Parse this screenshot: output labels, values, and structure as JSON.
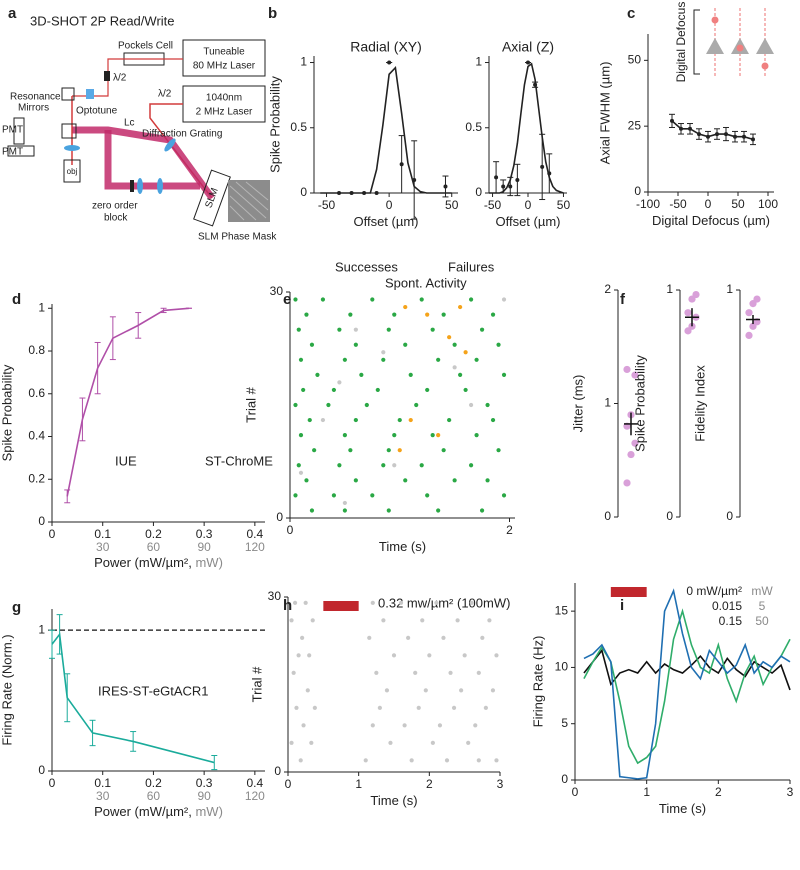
{
  "diagram": {
    "label": "a",
    "labels": [
      "3D-SHOT 2P Read/Write",
      "Pockels Cell",
      "Tuneable",
      "80 MHz Laser",
      "Resonance",
      "Mirrors",
      "λ/2",
      "Optotune",
      "1040nm",
      "2 MHz Laser",
      "λ/2",
      "Lc",
      "Diffraction Grating",
      "PMT",
      "PMT",
      "obj",
      "zero order",
      "block",
      "SLM",
      "SLM Phase Mask"
    ]
  },
  "chart_data": [
    {
      "type": "line",
      "label": "b",
      "title": "Radial (XY)",
      "xlabel": "Offset (µm)",
      "ylabel": "Spike Probability",
      "xlim": [
        -60,
        55
      ],
      "ylim": [
        0,
        1.05
      ],
      "xticks": [
        -50,
        0,
        50
      ],
      "yticks": [
        0,
        0.5,
        1
      ],
      "series": [
        {
          "style": "points",
          "color": "#222222",
          "x": [
            -40,
            -30,
            -20,
            -10,
            0,
            10,
            20,
            45
          ],
          "values": [
            0,
            0,
            0,
            0,
            1,
            0.22,
            0.1,
            0.05
          ],
          "errors": [
            0,
            0,
            0,
            0,
            0,
            0.22,
            0.3,
            0.08
          ]
        },
        {
          "style": "line",
          "color": "#222222",
          "x": [
            -55,
            -50,
            -45,
            -40,
            -35,
            -30,
            -25,
            -20,
            -15,
            -10,
            -5,
            0,
            5,
            10,
            15,
            20,
            25,
            30,
            35,
            40,
            45,
            50
          ],
          "values": [
            0,
            0,
            0,
            0,
            0,
            0,
            0,
            0,
            0,
            0.18,
            0.52,
            0.91,
            0.96,
            0.61,
            0.23,
            0.05,
            0.01,
            0,
            0,
            0,
            0,
            0
          ]
        }
      ]
    },
    {
      "type": "line",
      "title": "Axial (Z)",
      "xlabel": "Offset (µm)",
      "xlim": [
        -55,
        55
      ],
      "ylim": [
        0,
        1.05
      ],
      "xticks": [
        -50,
        0,
        50
      ],
      "yticks": [
        0,
        0.5,
        1
      ],
      "series": [
        {
          "style": "points",
          "color": "#222222",
          "x": [
            -45,
            -35,
            -25,
            -15,
            0,
            10,
            20,
            30
          ],
          "values": [
            0.12,
            0.05,
            0.05,
            0.1,
            1,
            0.83,
            0.2,
            0.15
          ],
          "errors": [
            0.12,
            0.05,
            0.07,
            0.12,
            0,
            0.02,
            0.25,
            0.15
          ]
        },
        {
          "style": "line",
          "color": "#222222",
          "x": [
            -55,
            -50,
            -45,
            -40,
            -35,
            -30,
            -25,
            -20,
            -15,
            -10,
            -5,
            0,
            5,
            10,
            15,
            20,
            25,
            30,
            35,
            40,
            45,
            50
          ],
          "values": [
            0,
            0,
            0,
            0,
            0.01,
            0.04,
            0.1,
            0.21,
            0.38,
            0.61,
            0.83,
            0.97,
            0.99,
            0.87,
            0.65,
            0.43,
            0.24,
            0.12,
            0.05,
            0.02,
            0.01,
            0
          ]
        }
      ]
    },
    {
      "type": "line",
      "label": "c",
      "xlabel": "Digital Defocus (µm)",
      "ylabel": "Axial FWHM (µm)",
      "inset_label": "Digital Defocus",
      "xlim": [
        -100,
        110
      ],
      "ylim": [
        0,
        60
      ],
      "xticks": [
        -100,
        -50,
        0,
        50,
        100
      ],
      "yticks": [
        0,
        25,
        50
      ],
      "series": [
        {
          "style": "line points",
          "color": "#222222",
          "x": [
            -60,
            -45,
            -30,
            -15,
            0,
            15,
            30,
            45,
            60,
            75
          ],
          "values": [
            27,
            24,
            24,
            22,
            21,
            22,
            22,
            21,
            21,
            20
          ],
          "errors": [
            2.5,
            2,
            2,
            2,
            2,
            2,
            2.5,
            2,
            2,
            2
          ]
        }
      ]
    },
    {
      "type": "line",
      "label": "d",
      "xlabel": "Power (mW/µm², ",
      "x2label": "mW)",
      "ylabel": "Spike Probability",
      "annotations": [
        "IUE",
        "ST-ChroME"
      ],
      "annotation_color": "#b04fa8",
      "xlim": [
        0,
        0.42
      ],
      "ylim": [
        0,
        1.02
      ],
      "xticks": [
        0,
        0.1,
        0.2,
        0.3,
        0.4
      ],
      "x2ticks": [
        {
          "value": 0.1,
          "label": "30"
        },
        {
          "value": 0.2,
          "label": "60"
        },
        {
          "value": 0.3,
          "label": "90"
        },
        {
          "value": 0.4,
          "label": "120"
        }
      ],
      "yticks": [
        0,
        0.2,
        0.4,
        0.6,
        0.8,
        1
      ],
      "series": [
        {
          "style": "line",
          "color": "#b04fa8",
          "x": [
            0.03,
            0.06,
            0.09,
            0.12,
            0.17,
            0.22,
            0.27
          ],
          "values": [
            0.12,
            0.48,
            0.72,
            0.86,
            0.92,
            0.99,
            1
          ],
          "errors": [
            0.03,
            0.1,
            0.12,
            0.1,
            0.06,
            0.01,
            0
          ]
        }
      ]
    },
    {
      "type": "scatter",
      "label": "e",
      "xlabel": "Time (s)",
      "ylabel": "Trial #",
      "xlim": [
        0,
        2.05
      ],
      "ylim": [
        0,
        30
      ],
      "xticks": [
        0,
        2
      ],
      "yticks": [
        0,
        30
      ],
      "series": [
        {
          "name": "Successes",
          "color": "#2aa845",
          "x": [
            0.05,
            0.3,
            0.75,
            1.2,
            1.65,
            0.15,
            0.55,
            0.95,
            1.4,
            1.85,
            0.08,
            0.45,
            0.9,
            1.3,
            1.75,
            0.2,
            0.6,
            1.05,
            1.5,
            1.9,
            0.1,
            0.5,
            0.85,
            1.35,
            1.7,
            0.25,
            0.65,
            1.1,
            1.55,
            1.95,
            0.12,
            0.4,
            0.8,
            1.25,
            1.6,
            0.05,
            0.35,
            0.7,
            1.15,
            1.8,
            0.18,
            0.6,
            1,
            1.45,
            1.85,
            0.1,
            0.5,
            0.95,
            1.3,
            1.7,
            0.22,
            0.55,
            0.9,
            1.4,
            1.9,
            0.08,
            0.45,
            0.85,
            1.2,
            1.65,
            0.15,
            0.6,
            1.05,
            1.5,
            1.8,
            0.05,
            0.4,
            0.75,
            1.25,
            1.95,
            0.2,
            0.5,
            0.9,
            1.35,
            1.75
          ],
          "values": [
            29,
            29,
            29,
            29,
            29,
            27,
            27,
            27,
            27,
            27,
            25,
            25,
            25,
            25,
            25,
            23,
            23,
            23,
            23,
            23,
            21,
            21,
            21,
            21,
            21,
            19,
            19,
            19,
            19,
            19,
            17,
            17,
            17,
            17,
            17,
            15,
            15,
            15,
            15,
            15,
            13,
            13,
            13,
            13,
            13,
            11,
            11,
            11,
            11,
            11,
            9,
            9,
            9,
            9,
            9,
            7,
            7,
            7,
            7,
            7,
            5,
            5,
            5,
            5,
            5,
            3,
            3,
            3,
            3,
            3,
            1,
            1,
            1,
            1,
            1
          ]
        },
        {
          "name": "Failures",
          "color": "#f5a31a",
          "x": [
            1.05,
            1.25,
            1.45,
            1.55,
            1.1,
            1.6,
            1,
            1.35
          ],
          "values": [
            28,
            27,
            24,
            28,
            13,
            22,
            9,
            11
          ]
        },
        {
          "name": "Spont. Activity",
          "color": "#c8c8c8",
          "x": [
            0.45,
            0.85,
            1.5,
            1.95,
            0.1,
            0.5,
            0.95,
            0.3,
            1.65,
            0.6
          ],
          "values": [
            18,
            22,
            20,
            29,
            6,
            2,
            7,
            13,
            15,
            25
          ]
        }
      ]
    },
    {
      "type": "strip",
      "label": "f",
      "ylabel": "Jitter (ms)",
      "ylim": [
        0,
        2
      ],
      "yticks": [
        0,
        1,
        2
      ],
      "color": "#d9a0d9",
      "values": [
        0.3,
        0.55,
        0.65,
        0.8,
        0.9,
        1.25,
        1.3
      ],
      "mean": 0.82,
      "sem": 0.1
    },
    {
      "type": "strip",
      "ylabel": "Spike Probability",
      "ylim": [
        0,
        1
      ],
      "yticks": [
        0,
        1
      ],
      "color": "#d9a0d9",
      "values": [
        0.82,
        0.84,
        0.88,
        0.9,
        0.96,
        0.98
      ],
      "mean": 0.88,
      "sem": 0.04
    },
    {
      "type": "strip",
      "ylabel": "Fidelity Index",
      "ylim": [
        0,
        1
      ],
      "yticks": [
        0,
        1
      ],
      "color": "#d9a0d9",
      "values": [
        0.8,
        0.84,
        0.86,
        0.9,
        0.94,
        0.96
      ],
      "mean": 0.87,
      "sem": 0.02
    },
    {
      "type": "line",
      "label": "g",
      "xlabel": "Power (mW/µm², ",
      "x2label": "mW)",
      "ylabel": "Firing Rate (Norm.)",
      "annotations": [
        "IRES-ST-eGtACR1"
      ],
      "annotation_color": "#1aab9b",
      "hline": 1,
      "xlim": [
        0,
        0.42
      ],
      "ylim": [
        0,
        1.15
      ],
      "xticks": [
        0,
        0.1,
        0.2,
        0.3,
        0.4
      ],
      "x2ticks": [
        {
          "value": 0.1,
          "label": "30"
        },
        {
          "value": 0.2,
          "label": "60"
        },
        {
          "value": 0.3,
          "label": "90"
        },
        {
          "value": 0.4,
          "label": "120"
        }
      ],
      "yticks": [
        0,
        1
      ],
      "series": [
        {
          "style": "line",
          "color": "#1aab9b",
          "x": [
            0,
            0.015,
            0.03,
            0.08,
            0.16,
            0.32
          ],
          "values": [
            0.9,
            0.97,
            0.52,
            0.27,
            0.21,
            0.06
          ],
          "errors": [
            0.1,
            0.14,
            0.17,
            0.09,
            0.07,
            0.05
          ]
        }
      ]
    },
    {
      "type": "scatter",
      "label": "h",
      "xlabel": "Time (s)",
      "ylabel": "Trial #",
      "annotations": [
        "0.32 mw/µm²  (100mW)"
      ],
      "annotation_color": "#111111",
      "stim": [
        0.5,
        1
      ],
      "stim_color": "#c1272d",
      "xlim": [
        0,
        3
      ],
      "ylim": [
        0,
        30
      ],
      "xticks": [
        0,
        1,
        2,
        3
      ],
      "yticks": [
        0,
        30
      ],
      "series": [
        {
          "color": "#c8c8c8",
          "x": [
            0.1,
            0.25,
            1.2,
            1.6,
            2.1,
            2.6,
            0.05,
            0.35,
            1.35,
            1.9,
            2.4,
            2.85,
            0.2,
            1.15,
            1.7,
            2.2,
            2.75,
            0.15,
            0.3,
            1.5,
            2,
            2.5,
            2.95,
            0.08,
            1.25,
            1.8,
            2.3,
            2.7,
            0.28,
            1.4,
            1.95,
            2.45,
            2.9,
            0.12,
            0.38,
            1.3,
            1.85,
            2.35,
            2.8,
            0.22,
            1.2,
            1.65,
            2.15,
            2.65,
            0.05,
            0.33,
            1.45,
            2.05,
            2.55,
            0.18,
            1.1,
            1.75,
            2.25,
            2.7,
            2.95
          ],
          "values": [
            29,
            29,
            29,
            29,
            29,
            29,
            26,
            26,
            26,
            26,
            26,
            26,
            23,
            23,
            23,
            23,
            23,
            20,
            20,
            20,
            20,
            20,
            20,
            17,
            17,
            17,
            17,
            17,
            14,
            14,
            14,
            14,
            14,
            11,
            11,
            11,
            11,
            11,
            11,
            8,
            8,
            8,
            8,
            8,
            5,
            5,
            5,
            5,
            5,
            2,
            2,
            2,
            2,
            2,
            2
          ]
        }
      ]
    },
    {
      "type": "line",
      "label": "i",
      "xlabel": "Time (s)",
      "ylabel": "Firing Rate (Hz)",
      "stim": [
        0.5,
        1
      ],
      "stim_color": "#c1272d",
      "xlim": [
        0,
        3
      ],
      "ylim": [
        0,
        17.5
      ],
      "xticks": [
        0,
        1,
        2,
        3
      ],
      "yticks": [
        0,
        5,
        10,
        15
      ],
      "x": [
        0.125,
        0.25,
        0.375,
        0.5,
        0.625,
        0.75,
        0.875,
        1,
        1.125,
        1.25,
        1.375,
        1.5,
        1.625,
        1.75,
        1.875,
        2,
        2.125,
        2.25,
        2.375,
        2.5,
        2.625,
        2.75,
        2.875,
        3
      ],
      "series": [
        {
          "name": "0 mW/µm²",
          "name2": "mW",
          "style": "line",
          "color": "#111111",
          "values": [
            9.5,
            10.5,
            11.5,
            8.5,
            9.5,
            9.8,
            9.5,
            10.5,
            9.5,
            10.3,
            9.8,
            9.5,
            10.2,
            11,
            10,
            9.5,
            10.8,
            9.8,
            9.2,
            10.5,
            10,
            9.5,
            10.2,
            8
          ]
        },
        {
          "name": "0.015",
          "name2": "5",
          "style": "line",
          "color": "#2fad6a",
          "values": [
            9,
            10.5,
            11.8,
            10.5,
            7,
            3,
            1.5,
            2,
            3,
            7,
            12.5,
            15,
            12,
            10,
            9.5,
            12,
            9,
            7,
            9.5,
            11,
            8.5,
            10,
            11,
            12.5
          ]
        },
        {
          "name": "0.15",
          "name2": "50",
          "style": "line",
          "color": "#1f6fb2",
          "values": [
            10.8,
            11.2,
            12,
            10.5,
            0.3,
            0.2,
            0.1,
            0.2,
            5,
            15,
            16.8,
            13,
            10,
            9,
            11.5,
            10.5,
            9.5,
            10.2,
            12,
            9.5,
            10.5,
            10,
            11,
            10.5
          ]
        }
      ]
    }
  ]
}
